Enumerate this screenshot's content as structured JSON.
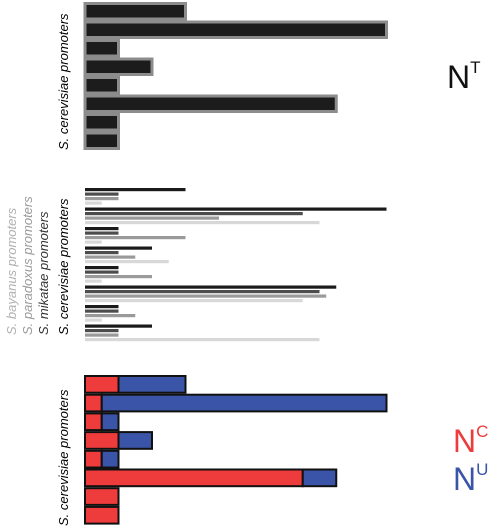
{
  "colors": {
    "cerevisiae": "#1a1a1a",
    "mikatae": "#4d4d4d",
    "paradoxus": "#9a9a9a",
    "bayanus": "#d8d8d8",
    "panel1_fill": "#1c1c1c",
    "panel1_stroke": "#8c8c8c",
    "nc": "#ee3b3b",
    "nu": "#3a54a8",
    "label_grey": "#a8a8a8"
  },
  "chart_data": [
    {
      "type": "bar",
      "orientation": "horizontal",
      "ylabel": "S. cerevisiae promoters",
      "annotation": {
        "base": "N",
        "sup": "T"
      },
      "values": [
        3,
        9,
        1,
        2,
        1,
        7.5,
        1,
        1
      ],
      "xlim": [
        0,
        10
      ]
    },
    {
      "type": "bar",
      "orientation": "horizontal",
      "ylabels": [
        "S. bayanus promoters",
        "S. paradoxus promoters",
        "S. mikatae promoters",
        "S. cerevisiae promoters"
      ],
      "series": [
        {
          "name": "S. cerevisiae",
          "values": [
            3,
            9,
            1,
            2,
            1,
            7.5,
            1,
            2
          ]
        },
        {
          "name": "S. mikatae",
          "values": [
            1,
            6.5,
            1,
            1,
            1,
            7,
            1,
            1
          ]
        },
        {
          "name": "S. paradoxus",
          "values": [
            1,
            4,
            3,
            1.5,
            2,
            7.2,
            1.5,
            1
          ]
        },
        {
          "name": "S. bayanus",
          "values": [
            0.5,
            7,
            0.5,
            2.5,
            0.5,
            6.5,
            0.5,
            7
          ]
        }
      ],
      "xlim": [
        0,
        10
      ]
    },
    {
      "type": "bar",
      "orientation": "horizontal",
      "stacked": true,
      "ylabel": "S. cerevisiae promoters",
      "series": [
        {
          "name": "NC",
          "values": [
            1,
            0.5,
            0.5,
            1,
            0.5,
            6.5,
            1,
            1
          ]
        },
        {
          "name": "NU",
          "values": [
            2,
            8.5,
            0.5,
            1,
            0.5,
            1,
            0,
            0
          ]
        }
      ],
      "legend": [
        {
          "base": "N",
          "sup": "C"
        },
        {
          "base": "N",
          "sup": "U"
        }
      ],
      "xlim": [
        0,
        10
      ]
    }
  ]
}
